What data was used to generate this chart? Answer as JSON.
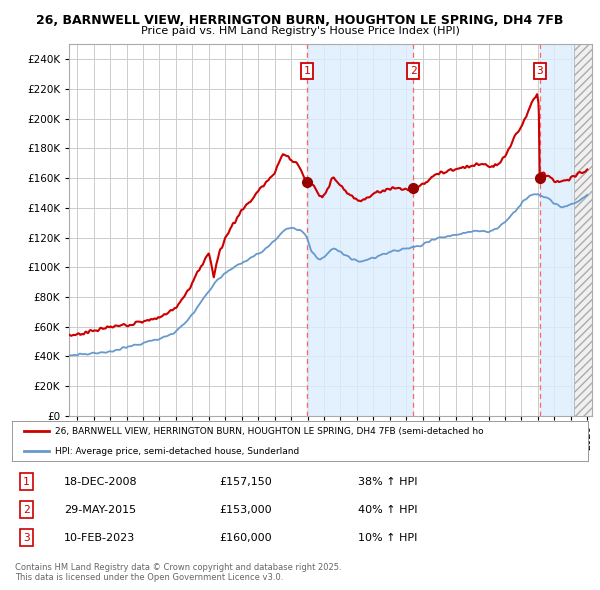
{
  "title_line1": "26, BARNWELL VIEW, HERRINGTON BURN, HOUGHTON LE SPRING, DH4 7FB",
  "title_line2": "Price paid vs. HM Land Registry's House Price Index (HPI)",
  "ylim": [
    0,
    250000
  ],
  "yticks": [
    0,
    20000,
    40000,
    60000,
    80000,
    100000,
    120000,
    140000,
    160000,
    180000,
    200000,
    220000,
    240000
  ],
  "xlim_start": 1994.5,
  "xlim_end": 2026.3,
  "sale_prices": [
    157150,
    153000,
    160000
  ],
  "sale_labels": [
    "1",
    "2",
    "3"
  ],
  "sale_label_texts": [
    "18-DEC-2008",
    "29-MAY-2015",
    "10-FEB-2023"
  ],
  "sale_price_texts": [
    "£157,150",
    "£153,000",
    "£160,000"
  ],
  "sale_hpi_texts": [
    "38% ↑ HPI",
    "40% ↑ HPI",
    "10% ↑ HPI"
  ],
  "hpi_color": "#6699cc",
  "price_color": "#cc0000",
  "background_color": "#ffffff",
  "grid_color": "#cccccc",
  "shade_color": "#ddeeff",
  "legend_label_price": "26, BARNWELL VIEW, HERRINGTON BURN, HOUGHTON LE SPRING, DH4 7FB (semi-detached ho",
  "legend_label_hpi": "HPI: Average price, semi-detached house, Sunderland",
  "copyright_text": "Contains HM Land Registry data © Crown copyright and database right 2025.\nThis data is licensed under the Open Government Licence v3.0.",
  "sale_date_nums": [
    2008.96,
    2015.41,
    2023.11
  ],
  "hatch_start": 2025.17,
  "hatch_end": 2026.3
}
